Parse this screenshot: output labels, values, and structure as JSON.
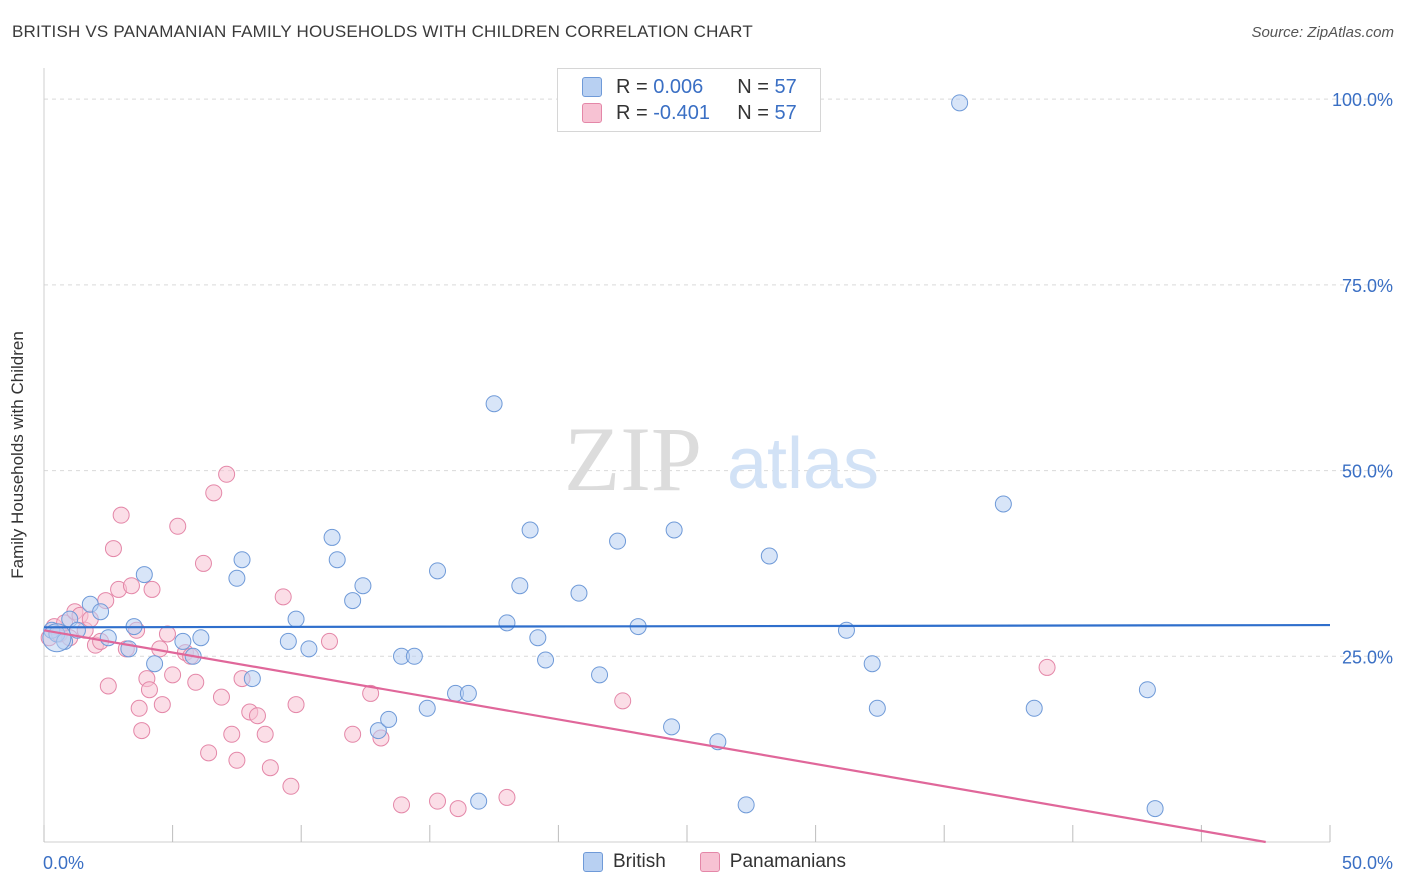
{
  "title": "BRITISH VS PANAMANIAN FAMILY HOUSEHOLDS WITH CHILDREN CORRELATION CHART",
  "source": "Source: ZipAtlas.com",
  "watermark": {
    "zip": "ZIP",
    "atlas": "atlas"
  },
  "colors": {
    "british_fill": "#b8d0f2",
    "british_stroke": "#6f9ad8",
    "british_line": "#2f6fcc",
    "panamanian_fill": "#f7c2d3",
    "panamanian_stroke": "#e487a8",
    "panamanian_line": "#e0679a",
    "tick_label": "#3a6fc4",
    "grid": "#d9d9d9"
  },
  "legend": {
    "rows": [
      {
        "r_label": "R =",
        "r_value": "0.006",
        "n_label": "N =",
        "n_value": "57"
      },
      {
        "r_label": "R =",
        "r_value": "-0.401",
        "n_label": "N =",
        "n_value": "57"
      }
    ],
    "bottom": [
      "British",
      "Panamanians"
    ]
  },
  "chart_data": {
    "type": "scatter",
    "title": "BRITISH VS PANAMANIAN FAMILY HOUSEHOLDS WITH CHILDREN CORRELATION CHART",
    "xlabel": "",
    "ylabel": "Family Households with Children",
    "xlim": [
      0,
      50
    ],
    "ylim": [
      0,
      105
    ],
    "x_tick_labels": [
      "0.0%",
      "50.0%"
    ],
    "y_ticks": [
      25,
      50,
      75,
      100
    ],
    "y_tick_labels": [
      "25.0%",
      "50.0%",
      "75.0%",
      "100.0%"
    ],
    "grid": "horizontal dashed",
    "legend_position": "top-center",
    "series": [
      {
        "name": "British",
        "r": 0.006,
        "n": 57,
        "trend": {
          "x": [
            0,
            50
          ],
          "y": [
            28.9,
            29.2
          ]
        },
        "points": [
          [
            0.3,
            28.5
          ],
          [
            0.5,
            28.0
          ],
          [
            0.8,
            27.0
          ],
          [
            1.0,
            30.0
          ],
          [
            1.3,
            28.5
          ],
          [
            1.8,
            32.0
          ],
          [
            2.2,
            31.0
          ],
          [
            2.5,
            27.5
          ],
          [
            3.3,
            26.0
          ],
          [
            3.5,
            29.0
          ],
          [
            3.9,
            36.0
          ],
          [
            4.3,
            24.0
          ],
          [
            5.4,
            27.0
          ],
          [
            5.8,
            25.0
          ],
          [
            6.1,
            27.5
          ],
          [
            7.5,
            35.5
          ],
          [
            7.7,
            38.0
          ],
          [
            8.1,
            22.0
          ],
          [
            9.5,
            27.0
          ],
          [
            9.8,
            30.0
          ],
          [
            10.3,
            26.0
          ],
          [
            11.2,
            41.0
          ],
          [
            11.4,
            38.0
          ],
          [
            12.0,
            32.5
          ],
          [
            12.4,
            34.5
          ],
          [
            13.0,
            15.0
          ],
          [
            13.4,
            16.5
          ],
          [
            13.9,
            25.0
          ],
          [
            14.4,
            25.0
          ],
          [
            14.9,
            18.0
          ],
          [
            15.3,
            36.5
          ],
          [
            16.0,
            20.0
          ],
          [
            16.5,
            20.0
          ],
          [
            16.9,
            5.5
          ],
          [
            17.5,
            59.0
          ],
          [
            18.0,
            29.5
          ],
          [
            18.5,
            34.5
          ],
          [
            18.9,
            42.0
          ],
          [
            19.2,
            27.5
          ],
          [
            19.5,
            24.5
          ],
          [
            20.8,
            33.5
          ],
          [
            21.6,
            22.5
          ],
          [
            22.3,
            40.5
          ],
          [
            23.1,
            29.0
          ],
          [
            24.4,
            15.5
          ],
          [
            24.5,
            42.0
          ],
          [
            26.2,
            13.5
          ],
          [
            27.3,
            5.0
          ],
          [
            28.2,
            38.5
          ],
          [
            31.2,
            28.5
          ],
          [
            32.2,
            24.0
          ],
          [
            32.4,
            18.0
          ],
          [
            35.6,
            99.5
          ],
          [
            37.3,
            45.5
          ],
          [
            38.5,
            18.0
          ],
          [
            42.9,
            20.5
          ],
          [
            43.2,
            4.5
          ]
        ]
      },
      {
        "name": "Panamanians",
        "r": -0.401,
        "n": 57,
        "trend": {
          "x": [
            0,
            47.5
          ],
          "y": [
            28.5,
            0
          ]
        },
        "points": [
          [
            0.2,
            27.5
          ],
          [
            0.4,
            29.0
          ],
          [
            0.6,
            28.0
          ],
          [
            0.8,
            29.5
          ],
          [
            1.0,
            27.5
          ],
          [
            1.2,
            31.0
          ],
          [
            1.4,
            30.5
          ],
          [
            1.6,
            28.5
          ],
          [
            1.8,
            30.0
          ],
          [
            2.0,
            26.5
          ],
          [
            2.2,
            27.0
          ],
          [
            2.4,
            32.5
          ],
          [
            2.5,
            21.0
          ],
          [
            2.7,
            39.5
          ],
          [
            2.9,
            34.0
          ],
          [
            3.0,
            44.0
          ],
          [
            3.2,
            26.0
          ],
          [
            3.4,
            34.5
          ],
          [
            3.6,
            28.5
          ],
          [
            3.7,
            18.0
          ],
          [
            3.8,
            15.0
          ],
          [
            4.0,
            22.0
          ],
          [
            4.1,
            20.5
          ],
          [
            4.2,
            34.0
          ],
          [
            4.5,
            26.0
          ],
          [
            4.6,
            18.5
          ],
          [
            4.8,
            28.0
          ],
          [
            5.0,
            22.5
          ],
          [
            5.2,
            42.5
          ],
          [
            5.5,
            25.5
          ],
          [
            5.7,
            25.0
          ],
          [
            5.9,
            21.5
          ],
          [
            6.2,
            37.5
          ],
          [
            6.4,
            12.0
          ],
          [
            6.6,
            47.0
          ],
          [
            6.9,
            19.5
          ],
          [
            7.1,
            49.5
          ],
          [
            7.3,
            14.5
          ],
          [
            7.5,
            11.0
          ],
          [
            7.7,
            22.0
          ],
          [
            8.0,
            17.5
          ],
          [
            8.3,
            17.0
          ],
          [
            8.6,
            14.5
          ],
          [
            8.8,
            10.0
          ],
          [
            9.3,
            33.0
          ],
          [
            9.6,
            7.5
          ],
          [
            9.8,
            18.5
          ],
          [
            11.1,
            27.0
          ],
          [
            12.0,
            14.5
          ],
          [
            12.7,
            20.0
          ],
          [
            13.1,
            14.0
          ],
          [
            13.9,
            5.0
          ],
          [
            15.3,
            5.5
          ],
          [
            16.1,
            4.5
          ],
          [
            18.0,
            6.0
          ],
          [
            22.5,
            19.0
          ],
          [
            39.0,
            23.5
          ]
        ]
      }
    ]
  }
}
